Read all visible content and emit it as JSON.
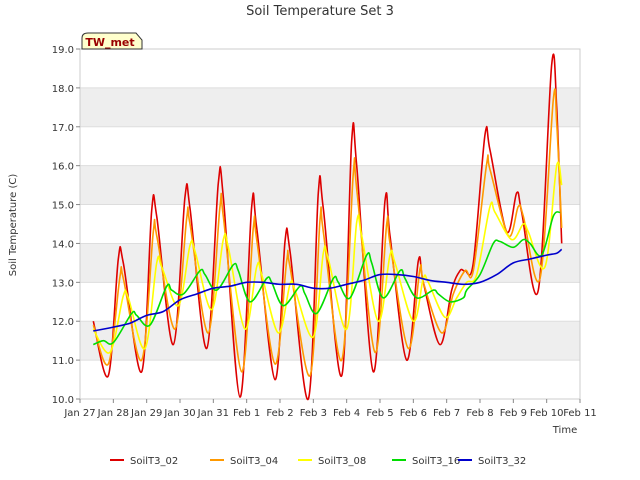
{
  "chart_data": {
    "type": "line",
    "title": "Soil Temperature Set 3",
    "xlabel": "Time",
    "ylabel": "Soil Temperature (C)",
    "badge": "TW_met",
    "xlim": [
      0,
      15
    ],
    "ylim": [
      10.0,
      19.0
    ],
    "grid": "horizontal bands",
    "legend_position": "bottom",
    "x_ticks": [
      "Jan 27",
      "Jan 28",
      "Jan 29",
      "Jan 30",
      "Jan 31",
      "Feb 1",
      "Feb 2",
      "Feb 3",
      "Feb 4",
      "Feb 5",
      "Feb 6",
      "Feb 7",
      "Feb 8",
      "Feb 9",
      "Feb 10",
      "Feb 11"
    ],
    "y_ticks": [
      "10.0",
      "11.0",
      "12.0",
      "13.0",
      "14.0",
      "15.0",
      "16.0",
      "17.0",
      "18.0",
      "19.0"
    ],
    "x_unit": "days from Jan 27",
    "series": [
      {
        "name": "SoilT3_02",
        "color": "#dd0000",
        "points": [
          [
            0.4,
            12.0
          ],
          [
            0.85,
            10.6
          ],
          [
            1.15,
            13.6
          ],
          [
            1.3,
            13.5
          ],
          [
            1.85,
            10.7
          ],
          [
            2.15,
            14.85
          ],
          [
            2.3,
            14.7
          ],
          [
            2.8,
            11.4
          ],
          [
            3.15,
            15.2
          ],
          [
            3.3,
            14.9
          ],
          [
            3.8,
            11.3
          ],
          [
            4.15,
            15.55
          ],
          [
            4.3,
            15.2
          ],
          [
            4.8,
            10.05
          ],
          [
            5.15,
            14.95
          ],
          [
            5.3,
            14.4
          ],
          [
            5.85,
            10.5
          ],
          [
            6.15,
            14.05
          ],
          [
            6.3,
            13.8
          ],
          [
            6.85,
            10.0
          ],
          [
            7.15,
            15.3
          ],
          [
            7.3,
            14.9
          ],
          [
            7.85,
            10.6
          ],
          [
            8.15,
            16.65
          ],
          [
            8.3,
            16.0
          ],
          [
            8.8,
            10.7
          ],
          [
            9.15,
            15.1
          ],
          [
            9.3,
            14.2
          ],
          [
            9.8,
            11.0
          ],
          [
            10.15,
            13.55
          ],
          [
            10.3,
            13.0
          ],
          [
            10.8,
            11.4
          ],
          [
            11.15,
            12.8
          ],
          [
            11.4,
            13.3
          ],
          [
            11.55,
            13.3
          ],
          [
            11.8,
            13.5
          ],
          [
            12.15,
            16.8
          ],
          [
            12.3,
            16.4
          ],
          [
            12.8,
            14.3
          ],
          [
            13.1,
            15.3
          ],
          [
            13.25,
            14.8
          ],
          [
            13.75,
            12.8
          ],
          [
            14.15,
            18.6
          ],
          [
            14.3,
            17.5
          ],
          [
            14.45,
            14.0
          ]
        ]
      },
      {
        "name": "SoilT3_04",
        "color": "#ff9900",
        "points": [
          [
            0.4,
            11.9
          ],
          [
            0.85,
            10.9
          ],
          [
            1.2,
            13.15
          ],
          [
            1.3,
            13.1
          ],
          [
            1.85,
            11.0
          ],
          [
            2.2,
            14.3
          ],
          [
            2.3,
            14.2
          ],
          [
            2.85,
            11.8
          ],
          [
            3.2,
            14.65
          ],
          [
            3.3,
            14.5
          ],
          [
            3.85,
            11.7
          ],
          [
            4.2,
            14.95
          ],
          [
            4.3,
            14.7
          ],
          [
            4.85,
            10.7
          ],
          [
            5.2,
            14.4
          ],
          [
            5.3,
            14.1
          ],
          [
            5.85,
            10.9
          ],
          [
            6.2,
            13.55
          ],
          [
            6.3,
            13.4
          ],
          [
            6.9,
            10.6
          ],
          [
            7.2,
            14.6
          ],
          [
            7.3,
            14.3
          ],
          [
            7.85,
            11.0
          ],
          [
            8.2,
            15.8
          ],
          [
            8.3,
            15.4
          ],
          [
            8.85,
            11.2
          ],
          [
            9.2,
            14.5
          ],
          [
            9.3,
            14.0
          ],
          [
            9.85,
            11.3
          ],
          [
            10.2,
            13.35
          ],
          [
            10.3,
            13.0
          ],
          [
            10.85,
            11.7
          ],
          [
            11.2,
            12.7
          ],
          [
            11.55,
            13.3
          ],
          [
            11.8,
            13.3
          ],
          [
            12.2,
            16.05
          ],
          [
            12.3,
            15.9
          ],
          [
            12.85,
            14.2
          ],
          [
            13.15,
            14.95
          ],
          [
            13.3,
            14.7
          ],
          [
            13.8,
            13.1
          ],
          [
            14.2,
            17.7
          ],
          [
            14.3,
            17.1
          ],
          [
            14.45,
            14.4
          ]
        ]
      },
      {
        "name": "SoilT3_08",
        "color": "#ffff00",
        "points": [
          [
            0.4,
            11.8
          ],
          [
            0.9,
            11.2
          ],
          [
            1.3,
            12.65
          ],
          [
            1.45,
            12.6
          ],
          [
            1.95,
            11.3
          ],
          [
            2.3,
            13.5
          ],
          [
            2.45,
            13.4
          ],
          [
            2.95,
            12.4
          ],
          [
            3.3,
            13.95
          ],
          [
            3.45,
            13.8
          ],
          [
            3.95,
            12.3
          ],
          [
            4.3,
            14.1
          ],
          [
            4.45,
            13.9
          ],
          [
            4.95,
            11.8
          ],
          [
            5.3,
            13.4
          ],
          [
            5.45,
            13.2
          ],
          [
            5.95,
            11.7
          ],
          [
            6.3,
            12.95
          ],
          [
            6.45,
            12.8
          ],
          [
            7.0,
            11.6
          ],
          [
            7.3,
            13.75
          ],
          [
            7.45,
            13.6
          ],
          [
            8.0,
            11.8
          ],
          [
            8.3,
            14.55
          ],
          [
            8.45,
            14.2
          ],
          [
            8.95,
            12.0
          ],
          [
            9.3,
            13.7
          ],
          [
            9.45,
            13.5
          ],
          [
            10.0,
            12.0
          ],
          [
            10.3,
            13.1
          ],
          [
            10.45,
            13.0
          ],
          [
            10.95,
            12.1
          ],
          [
            11.3,
            12.6
          ],
          [
            11.6,
            13.0
          ],
          [
            11.9,
            13.2
          ],
          [
            12.3,
            14.95
          ],
          [
            12.45,
            14.8
          ],
          [
            12.95,
            14.1
          ],
          [
            13.3,
            14.5
          ],
          [
            13.45,
            14.3
          ],
          [
            13.95,
            13.4
          ],
          [
            14.3,
            16.0
          ],
          [
            14.45,
            15.5
          ]
        ]
      },
      {
        "name": "SoilT3_16",
        "color": "#00dd00",
        "points": [
          [
            0.4,
            11.4
          ],
          [
            0.7,
            11.5
          ],
          [
            1.0,
            11.45
          ],
          [
            1.55,
            12.2
          ],
          [
            1.7,
            12.15
          ],
          [
            2.1,
            11.9
          ],
          [
            2.6,
            12.9
          ],
          [
            2.75,
            12.8
          ],
          [
            3.1,
            12.7
          ],
          [
            3.6,
            13.3
          ],
          [
            3.75,
            13.2
          ],
          [
            4.1,
            12.8
          ],
          [
            4.6,
            13.45
          ],
          [
            4.75,
            13.3
          ],
          [
            5.1,
            12.5
          ],
          [
            5.6,
            13.1
          ],
          [
            5.75,
            13.0
          ],
          [
            6.1,
            12.4
          ],
          [
            6.6,
            12.9
          ],
          [
            6.75,
            12.7
          ],
          [
            7.1,
            12.2
          ],
          [
            7.6,
            13.1
          ],
          [
            7.75,
            13.0
          ],
          [
            8.1,
            12.6
          ],
          [
            8.6,
            13.7
          ],
          [
            8.75,
            13.5
          ],
          [
            9.1,
            12.6
          ],
          [
            9.6,
            13.3
          ],
          [
            9.75,
            13.1
          ],
          [
            10.1,
            12.6
          ],
          [
            10.6,
            12.8
          ],
          [
            10.75,
            12.7
          ],
          [
            11.1,
            12.5
          ],
          [
            11.5,
            12.6
          ],
          [
            11.6,
            12.8
          ],
          [
            12.0,
            13.2
          ],
          [
            12.4,
            14.0
          ],
          [
            12.6,
            14.05
          ],
          [
            13.0,
            13.9
          ],
          [
            13.3,
            14.1
          ],
          [
            13.5,
            14.0
          ],
          [
            13.85,
            13.7
          ],
          [
            14.2,
            14.7
          ],
          [
            14.4,
            14.8
          ]
        ]
      },
      {
        "name": "SoilT3_32",
        "color": "#0000cc",
        "points": [
          [
            0.4,
            11.75
          ],
          [
            1.0,
            11.85
          ],
          [
            1.5,
            11.95
          ],
          [
            2.0,
            12.15
          ],
          [
            2.5,
            12.25
          ],
          [
            3.0,
            12.55
          ],
          [
            3.5,
            12.7
          ],
          [
            4.0,
            12.85
          ],
          [
            4.5,
            12.9
          ],
          [
            5.0,
            13.0
          ],
          [
            5.5,
            13.0
          ],
          [
            6.0,
            12.95
          ],
          [
            6.5,
            12.95
          ],
          [
            7.0,
            12.85
          ],
          [
            7.5,
            12.85
          ],
          [
            8.0,
            12.95
          ],
          [
            8.5,
            13.05
          ],
          [
            9.0,
            13.2
          ],
          [
            9.5,
            13.2
          ],
          [
            10.0,
            13.15
          ],
          [
            10.5,
            13.05
          ],
          [
            11.0,
            13.0
          ],
          [
            11.5,
            12.95
          ],
          [
            12.0,
            13.0
          ],
          [
            12.5,
            13.2
          ],
          [
            13.0,
            13.5
          ],
          [
            13.5,
            13.6
          ],
          [
            14.0,
            13.7
          ],
          [
            14.3,
            13.75
          ],
          [
            14.45,
            13.85
          ]
        ]
      }
    ]
  }
}
